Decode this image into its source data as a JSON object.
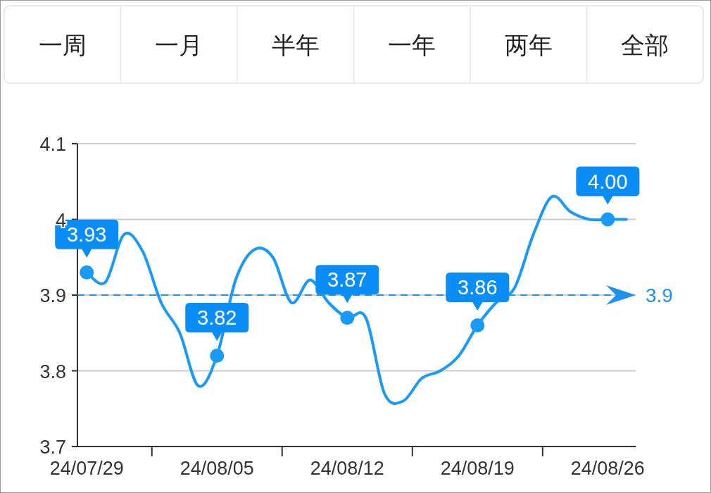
{
  "chart_data": {
    "type": "line",
    "categories": [
      "24/07/29",
      null,
      null,
      null,
      null,
      null,
      null,
      "24/08/05",
      null,
      null,
      null,
      null,
      null,
      null,
      "24/08/12",
      null,
      null,
      null,
      null,
      null,
      null,
      "24/08/19",
      null,
      null,
      null,
      null,
      null,
      null,
      "24/08/26",
      null
    ],
    "series": [
      {
        "color": "#1a9af7",
        "values": [
          3.93,
          3.917,
          3.98,
          3.958,
          3.89,
          3.85,
          3.78,
          3.82,
          3.92,
          3.96,
          3.95,
          3.89,
          3.92,
          3.89,
          3.87,
          3.87,
          3.77,
          3.76,
          3.79,
          3.8,
          3.82,
          3.86,
          3.89,
          3.91,
          3.98,
          4.03,
          4.01,
          4.0,
          4.0,
          4.0
        ],
        "value_labels": [
          "3.93",
          null,
          null,
          null,
          null,
          null,
          null,
          "3.82",
          null,
          null,
          null,
          null,
          null,
          null,
          "3.87",
          null,
          null,
          null,
          null,
          null,
          null,
          "3.86",
          null,
          null,
          null,
          null,
          null,
          null,
          "4.00",
          null
        ]
      }
    ],
    "ylim": [
      3.7,
      4.1
    ],
    "yticks": [
      3.7,
      3.8,
      3.9,
      4,
      4.1
    ],
    "grid": "y",
    "line_style": "solid",
    "ref_lines": [
      {
        "axis": "y",
        "value": 3.9,
        "label": "3.9",
        "color": "#1e90f0",
        "line_style": "dashed"
      }
    ],
    "annotations": [
      "一周",
      "一月",
      "半年",
      "一年",
      "两年",
      "全部"
    ]
  }
}
